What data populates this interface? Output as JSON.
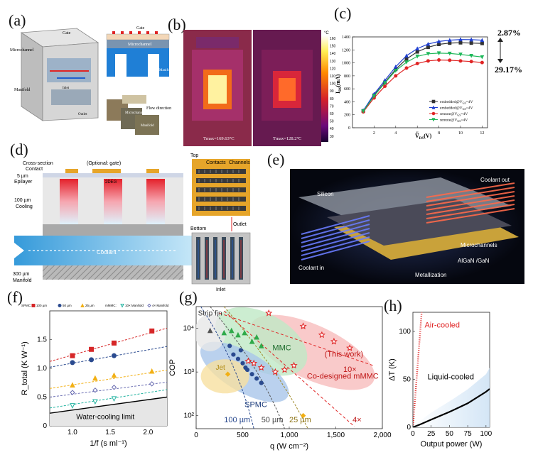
{
  "figure": {
    "title": "Composite figure: microchannel / manifold cooling of GaN devices"
  },
  "panels": {
    "a": {
      "label": "(a)",
      "texts": {
        "gate": "Gate",
        "gate2": "Gate",
        "microchannel": "Microchannel",
        "microchannel2": "Microchannel",
        "manifold": "Manifold",
        "manifold2": "Manifold",
        "inlet": "Inlet",
        "outlet": "Outlet",
        "flow": "Flow direction",
        "microchannel3": "Microchannel",
        "manifold3": "Manifold"
      }
    },
    "b": {
      "label": "(b)",
      "left_tmax": "Tmax=169.63°C",
      "right_tmax": "Tmax=128.2°C",
      "unit": "°C",
      "scale_ticks": [
        "160",
        "150",
        "140",
        "130",
        "120",
        "110",
        "100",
        "90",
        "80",
        "70",
        "60",
        "50",
        "40",
        "30"
      ]
    },
    "c": {
      "label": "(c)",
      "annot_top": "2.87%",
      "annot_bottom": "29.17%",
      "xlabel": "V",
      "xlabel_sub": "DS",
      "xlabel_unit": "(V)",
      "ylabel": "I",
      "ylabel_sub": "DS",
      "ylabel_unit": "(mA)",
      "legend": [
        {
          "text": "embedded@V",
          "sub": "GS",
          "tail": "=4V"
        },
        {
          "text": "embedded@V",
          "sub": "GS",
          "tail": "=4V"
        },
        {
          "text": "remote@V",
          "sub": "GS",
          "tail": "=4V"
        },
        {
          "text": "remote@V",
          "sub": "GS",
          "tail": "=4V"
        }
      ],
      "colors": [
        "#333333",
        "#1f3fd0",
        "#e02424",
        "#1fb85a"
      ]
    },
    "d": {
      "label": "(d)",
      "texts": {
        "cross": "Cross-section",
        "contact": "Contact",
        "optgate": "(Optional: gate)",
        "um5": "5 µm",
        "epilayer": "Epilayer",
        "deg": "2DEG",
        "um100": "100 µm",
        "cooling": "Cooling",
        "coolant": "Coolant",
        "um300": "300 µm",
        "manifold": "Manifold",
        "top": "Top",
        "contacts": "Contacts",
        "channels": "Channels",
        "outlet": "Outlet",
        "bottom": "Bottom",
        "inlet": "Inlet"
      }
    },
    "e": {
      "label": "(e)",
      "texts": {
        "silicon": "Silicon",
        "coolant_out": "Coolant out",
        "coolant_in": "Coolant in",
        "microchannels": "Microchannels",
        "algan": "AlGaN /GaN",
        "metallization": "Metallization"
      }
    }
  },
  "chart_data": [
    {
      "panel": "c",
      "type": "line",
      "title": "",
      "xlabel": "V_DS(V)",
      "ylabel": "I_DS(mA)",
      "xlim": [
        0,
        12.5
      ],
      "ylim": [
        0,
        1400
      ],
      "x_ticks": [
        "2",
        "4",
        "6",
        "8",
        "10",
        "12"
      ],
      "y_ticks": [
        "0",
        "200",
        "400",
        "600",
        "800",
        "1000",
        "1200",
        "1400"
      ],
      "x": [
        1,
        2,
        3,
        4,
        5,
        6,
        7,
        8,
        9,
        10,
        11,
        12
      ],
      "series": [
        {
          "name": "embedded@V_GS=4V (black)",
          "marker": "square",
          "values": [
            260,
            500,
            700,
            900,
            1060,
            1170,
            1240,
            1285,
            1305,
            1310,
            1305,
            1300
          ]
        },
        {
          "name": "embedded@V_GS=4V (blue)",
          "marker": "triangle-up",
          "values": [
            265,
            520,
            730,
            940,
            1110,
            1220,
            1290,
            1330,
            1350,
            1360,
            1358,
            1350
          ]
        },
        {
          "name": "remote@V_GS=4V (red)",
          "marker": "circle",
          "values": [
            245,
            460,
            640,
            800,
            920,
            990,
            1030,
            1045,
            1040,
            1030,
            1020,
            1005
          ]
        },
        {
          "name": "remote@V_GS=4V (green)",
          "marker": "triangle-down",
          "values": [
            255,
            490,
            690,
            880,
            1010,
            1100,
            1140,
            1150,
            1145,
            1130,
            1110,
            1090
          ]
        }
      ]
    },
    {
      "panel": "f",
      "type": "scatter",
      "xlabel": "1/f (s ml⁻¹)",
      "ylabel": "R_total (K W⁻¹)",
      "xlim": [
        0.7,
        2.25
      ],
      "ylim": [
        0,
        2.0
      ],
      "x_ticks": [
        "1.0",
        "1.5",
        "2.0"
      ],
      "y_ticks": [
        "0",
        "0.5",
        "1.0",
        "1.5"
      ],
      "legend_prefix": "SPMC:",
      "legend_mid": "mMMC:",
      "limit_label": "Water-cooling limit",
      "series": [
        {
          "name": "100 µm",
          "marker": "square",
          "color": "#d62728",
          "x": [
            1.0,
            1.25,
            1.55,
            2.05
          ],
          "y": [
            1.22,
            1.33,
            1.44,
            1.65
          ],
          "fit": [
            1.12,
            1.7
          ]
        },
        {
          "name": "50 µm",
          "marker": "circle",
          "color": "#2a4a8f",
          "x": [
            1.0,
            1.25,
            1.55
          ],
          "y": [
            1.1,
            1.15,
            1.22
          ],
          "fit": [
            1.02,
            1.38
          ]
        },
        {
          "name": "25 µm",
          "marker": "triangle-up",
          "color": "#f2b015",
          "x": [
            1.0,
            1.3,
            1.55,
            2.05
          ],
          "y": [
            0.71,
            0.83,
            0.88,
            0.95
          ],
          "fit": [
            0.65,
            0.97
          ]
        },
        {
          "name": "10× Manifold",
          "marker": "triangle-down",
          "color": "#22b3a0",
          "x": [
            1.0,
            1.3,
            1.55
          ],
          "y": [
            0.35,
            0.42,
            0.47
          ],
          "fit": [
            0.31,
            0.63
          ]
        },
        {
          "name": "4× Manifold",
          "marker": "diamond",
          "color": "#6c6fb3",
          "x": [
            1.0,
            1.3,
            1.55,
            2.05
          ],
          "y": [
            0.58,
            0.62,
            0.67,
            0.73
          ],
          "fit": [
            0.5,
            0.76
          ]
        }
      ],
      "limit": [
        0.22,
        0.5
      ]
    },
    {
      "panel": "g",
      "type": "scatter",
      "xlabel": "q (W cm⁻²)",
      "ylabel": "COP",
      "xlim": [
        0,
        2000
      ],
      "ylim_log10": [
        1.7,
        4.5
      ],
      "x_ticks": [
        "0",
        "500",
        "1,000",
        "1,500",
        "2,000"
      ],
      "y_ticks": [
        "10²",
        "10³",
        "10⁴"
      ],
      "regions": {
        "strip": "Strip fin",
        "jet": "Jet",
        "mmc": "MMC",
        "spmc": "SPMC",
        "codesigned": "Co-designed mMMC",
        "thiswork": "(This work)",
        "ten": "10×",
        "four": "4×",
        "r100": "100 µm",
        "r50": "50 µm",
        "r25": "25 µm"
      }
    },
    {
      "panel": "h",
      "type": "line",
      "xlabel": "Output power (W)",
      "ylabel": "ΔT (K)",
      "xlim": [
        0,
        105
      ],
      "ylim": [
        0,
        120
      ],
      "x_ticks": [
        "0",
        "25",
        "50",
        "75",
        "100"
      ],
      "y_ticks": [
        "0",
        "50",
        "100"
      ],
      "series": [
        {
          "name": "Air-cooled",
          "color": "#e02424",
          "x": [
            0,
            2,
            4,
            6,
            8,
            10,
            12
          ],
          "y": [
            0,
            20,
            40,
            60,
            80,
            100,
            120
          ]
        },
        {
          "name": "Liquid-cooled",
          "color": "#000000",
          "x": [
            0,
            10,
            25,
            50,
            75,
            100,
            105
          ],
          "y": [
            0,
            3,
            8,
            16,
            25,
            37,
            40
          ]
        }
      ]
    }
  ],
  "labels_extra": {
    "f": "(f)",
    "g": "(g)",
    "h": "(h)"
  }
}
